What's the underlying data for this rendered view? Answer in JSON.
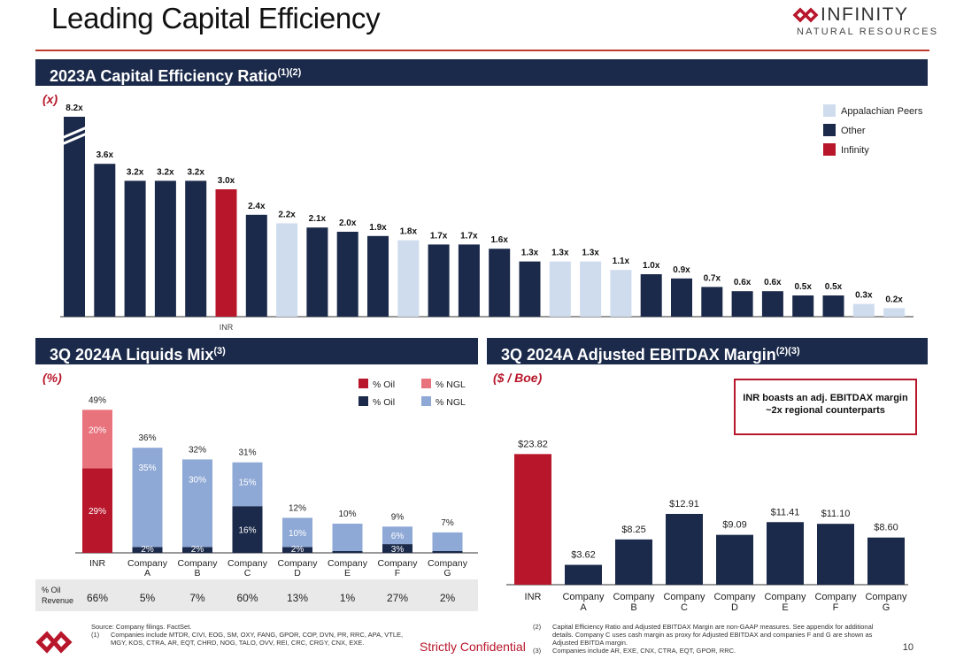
{
  "page": {
    "title": "Leading Capital Efficiency",
    "logo_word": "INFINITY",
    "logo_sub": "NATURAL RESOURCES",
    "confidential": "Strictly Confidential",
    "page_number": "10"
  },
  "colors": {
    "navy": "#1b2a4a",
    "red": "#b8162b",
    "light": "#cfdcee",
    "pink": "#e8737d",
    "steel": "#8fa9d6"
  },
  "sections": {
    "top": {
      "title": "2023A Capital Efficiency Ratio",
      "sup": "(1)(2)",
      "unit": "(x)"
    },
    "left": {
      "title": "3Q 2024A Liquids Mix",
      "sup": "(3)",
      "unit": "(%)"
    },
    "right": {
      "title": "3Q 2024A Adjusted EBITDAX Margin",
      "sup": "(2)(3)",
      "unit": "($ / Boe)"
    }
  },
  "callout": "INR boasts an adj. EBITDAX margin ~2x regional counterparts",
  "chart_data": [
    {
      "type": "bar",
      "title": "2023A Capital Efficiency Ratio",
      "unit": "(x)",
      "legend": [
        "Appalachian Peers",
        "Other",
        "Infinity"
      ],
      "legend_position": "top-right",
      "x_label_shown": "INR",
      "values": [
        8.2,
        3.6,
        3.2,
        3.2,
        3.2,
        3.0,
        2.4,
        2.2,
        2.1,
        2.0,
        1.9,
        1.8,
        1.7,
        1.7,
        1.6,
        1.3,
        1.3,
        1.3,
        1.1,
        1.0,
        0.9,
        0.7,
        0.6,
        0.6,
        0.5,
        0.5,
        0.3,
        0.2
      ],
      "labels": [
        "8.2x",
        "3.6x",
        "3.2x",
        "3.2x",
        "3.2x",
        "3.0x",
        "2.4x",
        "2.2x",
        "2.1x",
        "2.0x",
        "1.9x",
        "1.8x",
        "1.7x",
        "1.7x",
        "1.6x",
        "1.3x",
        "1.3x",
        "1.3x",
        "1.1x",
        "1.0x",
        "0.9x",
        "0.7x",
        "0.6x",
        "0.6x",
        "0.5x",
        "0.5x",
        "0.3x",
        "0.2x"
      ],
      "groups": [
        "Other",
        "Other",
        "Other",
        "Other",
        "Other",
        "Infinity",
        "Other",
        "Appalachian Peers",
        "Other",
        "Other",
        "Other",
        "Appalachian Peers",
        "Other",
        "Other",
        "Other",
        "Other",
        "Appalachian Peers",
        "Appalachian Peers",
        "Appalachian Peers",
        "Other",
        "Other",
        "Other",
        "Other",
        "Other",
        "Other",
        "Other",
        "Appalachian Peers",
        "Appalachian Peers"
      ],
      "axis_break_on_first": true,
      "grid": false
    },
    {
      "type": "bar",
      "stacked": true,
      "title": "3Q 2024A Liquids Mix",
      "unit": "(%)",
      "categories": [
        "INR",
        "Company A",
        "Company B",
        "Company C",
        "Company D",
        "Company E",
        "Company F",
        "Company G"
      ],
      "legend": [
        "% Oil",
        "% NGL",
        "% Oil",
        "% NGL"
      ],
      "legend_position": "top-right",
      "oil": [
        29,
        2,
        2,
        16,
        2,
        null,
        3,
        null
      ],
      "ngl": [
        20,
        35,
        30,
        15,
        10,
        null,
        6,
        null
      ],
      "oil_labels": [
        "29%",
        "2%",
        "2%",
        "16%",
        "2%",
        "",
        "3%",
        ""
      ],
      "ngl_labels": [
        "20%",
        "35%",
        "30%",
        "15%",
        "10%",
        "",
        "6%",
        ""
      ],
      "totals": [
        49,
        36,
        32,
        31,
        12,
        10,
        9,
        7
      ],
      "total_labels": [
        "49%",
        "36%",
        "32%",
        "31%",
        "12%",
        "10%",
        "9%",
        "7%"
      ],
      "oil_revenue_label": "% Oil Revenue",
      "oil_revenue": [
        "66%",
        "5%",
        "7%",
        "60%",
        "13%",
        "1%",
        "27%",
        "2%"
      ],
      "grid": false
    },
    {
      "type": "bar",
      "title": "3Q 2024A Adjusted EBITDAX Margin",
      "unit": "($ / Boe)",
      "categories": [
        "INR",
        "Company A",
        "Company B",
        "Company C",
        "Company D",
        "Company E",
        "Company F",
        "Company G"
      ],
      "values": [
        23.82,
        3.62,
        8.25,
        12.91,
        9.09,
        11.41,
        11.1,
        8.6
      ],
      "labels": [
        "$23.82",
        "$3.62",
        "$8.25",
        "$12.91",
        "$9.09",
        "$11.41",
        "$11.10",
        "$8.60"
      ],
      "grid": false
    }
  ],
  "footnotes": {
    "source": "Source: Company filings. FactSet.",
    "n1_num": "(1)",
    "n1": "Companies include MTDR, CIVI, EOG, SM, OXY, FANG, GPOR, COP, DVN, PR, RRC, APA, VTLE, MGY, KOS, CTRA, AR, EQT, CHRD, NOG, TALO, OVV, REI, CRC, CRGY, CNX, EXE.",
    "n2_num": "(2)",
    "n2": "Capital Efficiency Ratio and Adjusted EBITDAX Margin are non-GAAP measures. See appendix for additional details. Company C uses cash margin as proxy for Adjusted EBITDAX and companies F and G are shown as Adjusted EBITDA margin.",
    "n3_num": "(3)",
    "n3": "Companies include AR, EXE, CNX, CTRA, EQT, GPOR, RRC."
  }
}
